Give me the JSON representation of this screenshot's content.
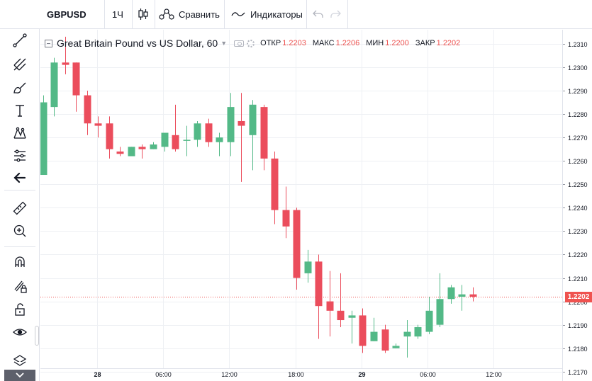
{
  "toolbar": {
    "symbol": "GBPUSD",
    "interval": "1Ч",
    "compare_label": "Сравнить",
    "indicators_label": "Индикаторы",
    "icons": [
      "candles-icon",
      "compare-icon",
      "indicators-icon",
      "undo-icon",
      "redo-icon"
    ]
  },
  "left_toolbar": {
    "tools": [
      "crosshair-icon",
      "trend-line-icon",
      "pitchfork-icon",
      "brush-icon",
      "text-icon",
      "pattern-icon",
      "prediction-icon",
      "back-arrow-icon",
      "ruler-icon",
      "zoom-in-icon",
      "magnet-icon",
      "lock-drawings-icon",
      "unlock-icon",
      "eye-icon",
      "layers-icon",
      "collapse-icon"
    ]
  },
  "legend": {
    "title": "Great Britain Pound vs US Dollar, 60",
    "open_label": "ОТКР",
    "open_value": "1.2203",
    "high_label": "МАКС",
    "high_value": "1.2206",
    "low_label": "МИН",
    "low_value": "1.2200",
    "close_label": "ЗАКР",
    "close_value": "1.2202"
  },
  "colors": {
    "up": "#53b987",
    "down": "#eb4d5c",
    "grid": "#eef0f4",
    "last_price": "#ef5350"
  },
  "chart_data": {
    "type": "candlestick",
    "title": "Great Britain Pound vs US Dollar, 60",
    "x_tick_labels": [
      "28",
      "06:00",
      "12:00",
      "18:00",
      "29",
      "06:00",
      "12:00"
    ],
    "y_tick_labels": [
      "1.2310",
      "1.2300",
      "1.2290",
      "1.2280",
      "1.2270",
      "1.2260",
      "1.2250",
      "1.2240",
      "1.2230",
      "1.2220",
      "1.2210",
      "1.2200",
      "1.2190",
      "1.2180",
      "1.2170"
    ],
    "ylim": [
      1.2166,
      1.2316
    ],
    "grid": true,
    "last_price": "1.2202",
    "candles": [
      {
        "o": 1.2254,
        "h": 1.2288,
        "l": 1.2254,
        "c": 1.2285
      },
      {
        "o": 1.2283,
        "h": 1.2304,
        "l": 1.2279,
        "c": 1.2302
      },
      {
        "o": 1.2302,
        "h": 1.2313,
        "l": 1.2297,
        "c": 1.2301
      },
      {
        "o": 1.2302,
        "h": 1.2302,
        "l": 1.2281,
        "c": 1.2288
      },
      {
        "o": 1.2288,
        "h": 1.229,
        "l": 1.2271,
        "c": 1.2276
      },
      {
        "o": 1.2276,
        "h": 1.2279,
        "l": 1.227,
        "c": 1.2275
      },
      {
        "o": 1.2276,
        "h": 1.2279,
        "l": 1.2261,
        "c": 1.2265
      },
      {
        "o": 1.2264,
        "h": 1.2266,
        "l": 1.2262,
        "c": 1.2263
      },
      {
        "o": 1.2262,
        "h": 1.2266,
        "l": 1.2262,
        "c": 1.2266
      },
      {
        "o": 1.2266,
        "h": 1.2267,
        "l": 1.2261,
        "c": 1.2265
      },
      {
        "o": 1.2265,
        "h": 1.2268,
        "l": 1.2265,
        "c": 1.2267
      },
      {
        "o": 1.2266,
        "h": 1.2272,
        "l": 1.2264,
        "c": 1.2272
      },
      {
        "o": 1.2271,
        "h": 1.2284,
        "l": 1.2264,
        "c": 1.2265
      },
      {
        "o": 1.2269,
        "h": 1.2275,
        "l": 1.2262,
        "c": 1.2269
      },
      {
        "o": 1.2269,
        "h": 1.2277,
        "l": 1.2266,
        "c": 1.2276
      },
      {
        "o": 1.2276,
        "h": 1.2278,
        "l": 1.2266,
        "c": 1.2268
      },
      {
        "o": 1.2268,
        "h": 1.2272,
        "l": 1.2262,
        "c": 1.227
      },
      {
        "o": 1.2268,
        "h": 1.2289,
        "l": 1.2262,
        "c": 1.2283
      },
      {
        "o": 1.2277,
        "h": 1.2289,
        "l": 1.2251,
        "c": 1.2275
      },
      {
        "o": 1.2271,
        "h": 1.2286,
        "l": 1.2256,
        "c": 1.2284
      },
      {
        "o": 1.2283,
        "h": 1.2284,
        "l": 1.2256,
        "c": 1.2261
      },
      {
        "o": 1.2261,
        "h": 1.2264,
        "l": 1.2233,
        "c": 1.2239
      },
      {
        "o": 1.2239,
        "h": 1.2249,
        "l": 1.2227,
        "c": 1.2232
      },
      {
        "o": 1.2239,
        "h": 1.224,
        "l": 1.2205,
        "c": 1.221
      },
      {
        "o": 1.2212,
        "h": 1.2222,
        "l": 1.2208,
        "c": 1.2217
      },
      {
        "o": 1.2217,
        "h": 1.222,
        "l": 1.2184,
        "c": 1.2198
      },
      {
        "o": 1.22,
        "h": 1.2213,
        "l": 1.2185,
        "c": 1.2196
      },
      {
        "o": 1.2196,
        "h": 1.2212,
        "l": 1.2189,
        "c": 1.2192
      },
      {
        "o": 1.2193,
        "h": 1.2196,
        "l": 1.2182,
        "c": 1.2194
      },
      {
        "o": 1.2194,
        "h": 1.2197,
        "l": 1.2178,
        "c": 1.2181
      },
      {
        "o": 1.2183,
        "h": 1.2193,
        "l": 1.2183,
        "c": 1.2187
      },
      {
        "o": 1.2188,
        "h": 1.219,
        "l": 1.2178,
        "c": 1.2179
      },
      {
        "o": 1.218,
        "h": 1.2182,
        "l": 1.218,
        "c": 1.2181
      },
      {
        "o": 1.2185,
        "h": 1.2192,
        "l": 1.2176,
        "c": 1.2187
      },
      {
        "o": 1.2185,
        "h": 1.219,
        "l": 1.2184,
        "c": 1.2189
      },
      {
        "o": 1.2187,
        "h": 1.2202,
        "l": 1.2186,
        "c": 1.2196
      },
      {
        "o": 1.219,
        "h": 1.2212,
        "l": 1.2189,
        "c": 1.2201
      },
      {
        "o": 1.2201,
        "h": 1.2207,
        "l": 1.2199,
        "c": 1.2206
      },
      {
        "o": 1.2202,
        "h": 1.2207,
        "l": 1.2196,
        "c": 1.2203
      },
      {
        "o": 1.2203,
        "h": 1.2206,
        "l": 1.22,
        "c": 1.2202
      }
    ]
  }
}
